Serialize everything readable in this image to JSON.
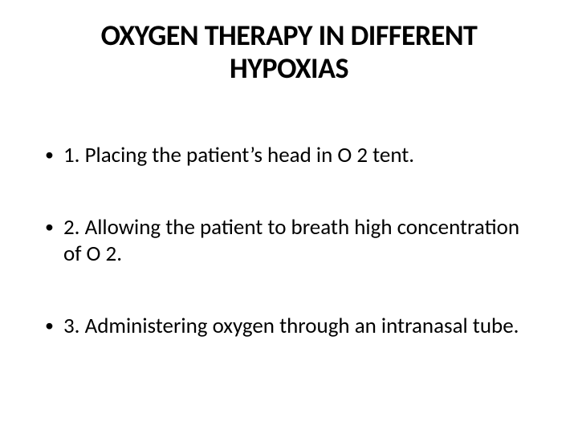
{
  "slide": {
    "title": "OXYGEN THERAPY IN DIFFERENT HYPOXIAS",
    "items": [
      "1.  Placing the patient’s head in O 2 tent.",
      "2.  Allowing the patient to breath high concentration of O 2.",
      "3.  Administering oxygen through an intranasal tube."
    ],
    "colors": {
      "background": "#ffffff",
      "text": "#000000"
    },
    "typography": {
      "title_fontsize": 36,
      "title_weight": 700,
      "body_fontsize": 27,
      "body_weight": 400,
      "font_family": "Calibri"
    },
    "bullet_glyph": "•"
  }
}
